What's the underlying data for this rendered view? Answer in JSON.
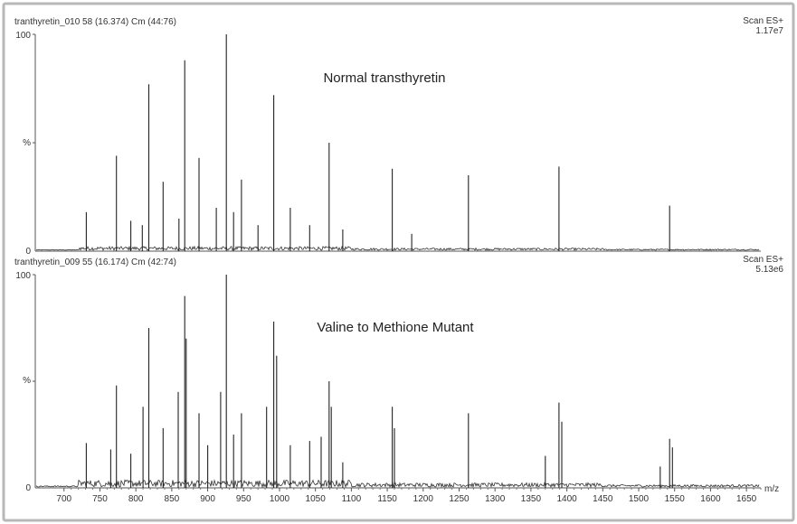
{
  "chart_data": [
    {
      "type": "line",
      "header_left": "tranthyretin_010 58 (16.374) Cm (44:76)",
      "header_right_1": "Scan ES+",
      "header_right_2": "1.17e7",
      "title": "Normal transthyretin",
      "ylabel": "%",
      "y_ticks": [
        "0",
        "100"
      ],
      "ylim": [
        0,
        100
      ],
      "xlim": [
        660,
        1670
      ],
      "peaks": [
        {
          "x": 731,
          "y": 18
        },
        {
          "x": 773,
          "y": 44
        },
        {
          "x": 793,
          "y": 14
        },
        {
          "x": 809,
          "y": 12
        },
        {
          "x": 818,
          "y": 77
        },
        {
          "x": 838,
          "y": 32
        },
        {
          "x": 860,
          "y": 15
        },
        {
          "x": 868,
          "y": 88
        },
        {
          "x": 888,
          "y": 43
        },
        {
          "x": 912,
          "y": 20
        },
        {
          "x": 926,
          "y": 100
        },
        {
          "x": 936,
          "y": 18
        },
        {
          "x": 947,
          "y": 33
        },
        {
          "x": 970,
          "y": 12
        },
        {
          "x": 992,
          "y": 72
        },
        {
          "x": 1015,
          "y": 20
        },
        {
          "x": 1042,
          "y": 12
        },
        {
          "x": 1069,
          "y": 50
        },
        {
          "x": 1088,
          "y": 10
        },
        {
          "x": 1157,
          "y": 38
        },
        {
          "x": 1184,
          "y": 8
        },
        {
          "x": 1263,
          "y": 35
        },
        {
          "x": 1389,
          "y": 39
        },
        {
          "x": 1543,
          "y": 21
        }
      ]
    },
    {
      "type": "line",
      "header_left": "tranthyretin_009 55 (16.174) Cm (42:74)",
      "header_right_1": "Scan ES+",
      "header_right_2": "5.13e6",
      "title": "Valine to Methione Mutant",
      "ylabel": "%",
      "y_ticks": [
        "0",
        "100"
      ],
      "ylim": [
        0,
        100
      ],
      "xlabel": "m/z",
      "xlim": [
        660,
        1670
      ],
      "x_ticks": [
        "700",
        "750",
        "800",
        "850",
        "900",
        "950",
        "1000",
        "1050",
        "1100",
        "1150",
        "1200",
        "1250",
        "1300",
        "1350",
        "1400",
        "1450",
        "1500",
        "1550",
        "1600",
        "1650"
      ],
      "peaks": [
        {
          "x": 731,
          "y": 21
        },
        {
          "x": 765,
          "y": 18
        },
        {
          "x": 773,
          "y": 48
        },
        {
          "x": 793,
          "y": 16
        },
        {
          "x": 810,
          "y": 38
        },
        {
          "x": 818,
          "y": 75
        },
        {
          "x": 838,
          "y": 28
        },
        {
          "x": 859,
          "y": 45
        },
        {
          "x": 868,
          "y": 90
        },
        {
          "x": 870,
          "y": 70
        },
        {
          "x": 888,
          "y": 35
        },
        {
          "x": 900,
          "y": 20
        },
        {
          "x": 918,
          "y": 45
        },
        {
          "x": 926,
          "y": 100
        },
        {
          "x": 936,
          "y": 25
        },
        {
          "x": 947,
          "y": 35
        },
        {
          "x": 982,
          "y": 38
        },
        {
          "x": 992,
          "y": 78
        },
        {
          "x": 996,
          "y": 62
        },
        {
          "x": 1015,
          "y": 20
        },
        {
          "x": 1042,
          "y": 22
        },
        {
          "x": 1058,
          "y": 24
        },
        {
          "x": 1069,
          "y": 50
        },
        {
          "x": 1072,
          "y": 38
        },
        {
          "x": 1088,
          "y": 12
        },
        {
          "x": 1157,
          "y": 38
        },
        {
          "x": 1160,
          "y": 28
        },
        {
          "x": 1263,
          "y": 35
        },
        {
          "x": 1370,
          "y": 15
        },
        {
          "x": 1389,
          "y": 40
        },
        {
          "x": 1393,
          "y": 31
        },
        {
          "x": 1530,
          "y": 10
        },
        {
          "x": 1543,
          "y": 23
        },
        {
          "x": 1547,
          "y": 19
        }
      ]
    }
  ]
}
